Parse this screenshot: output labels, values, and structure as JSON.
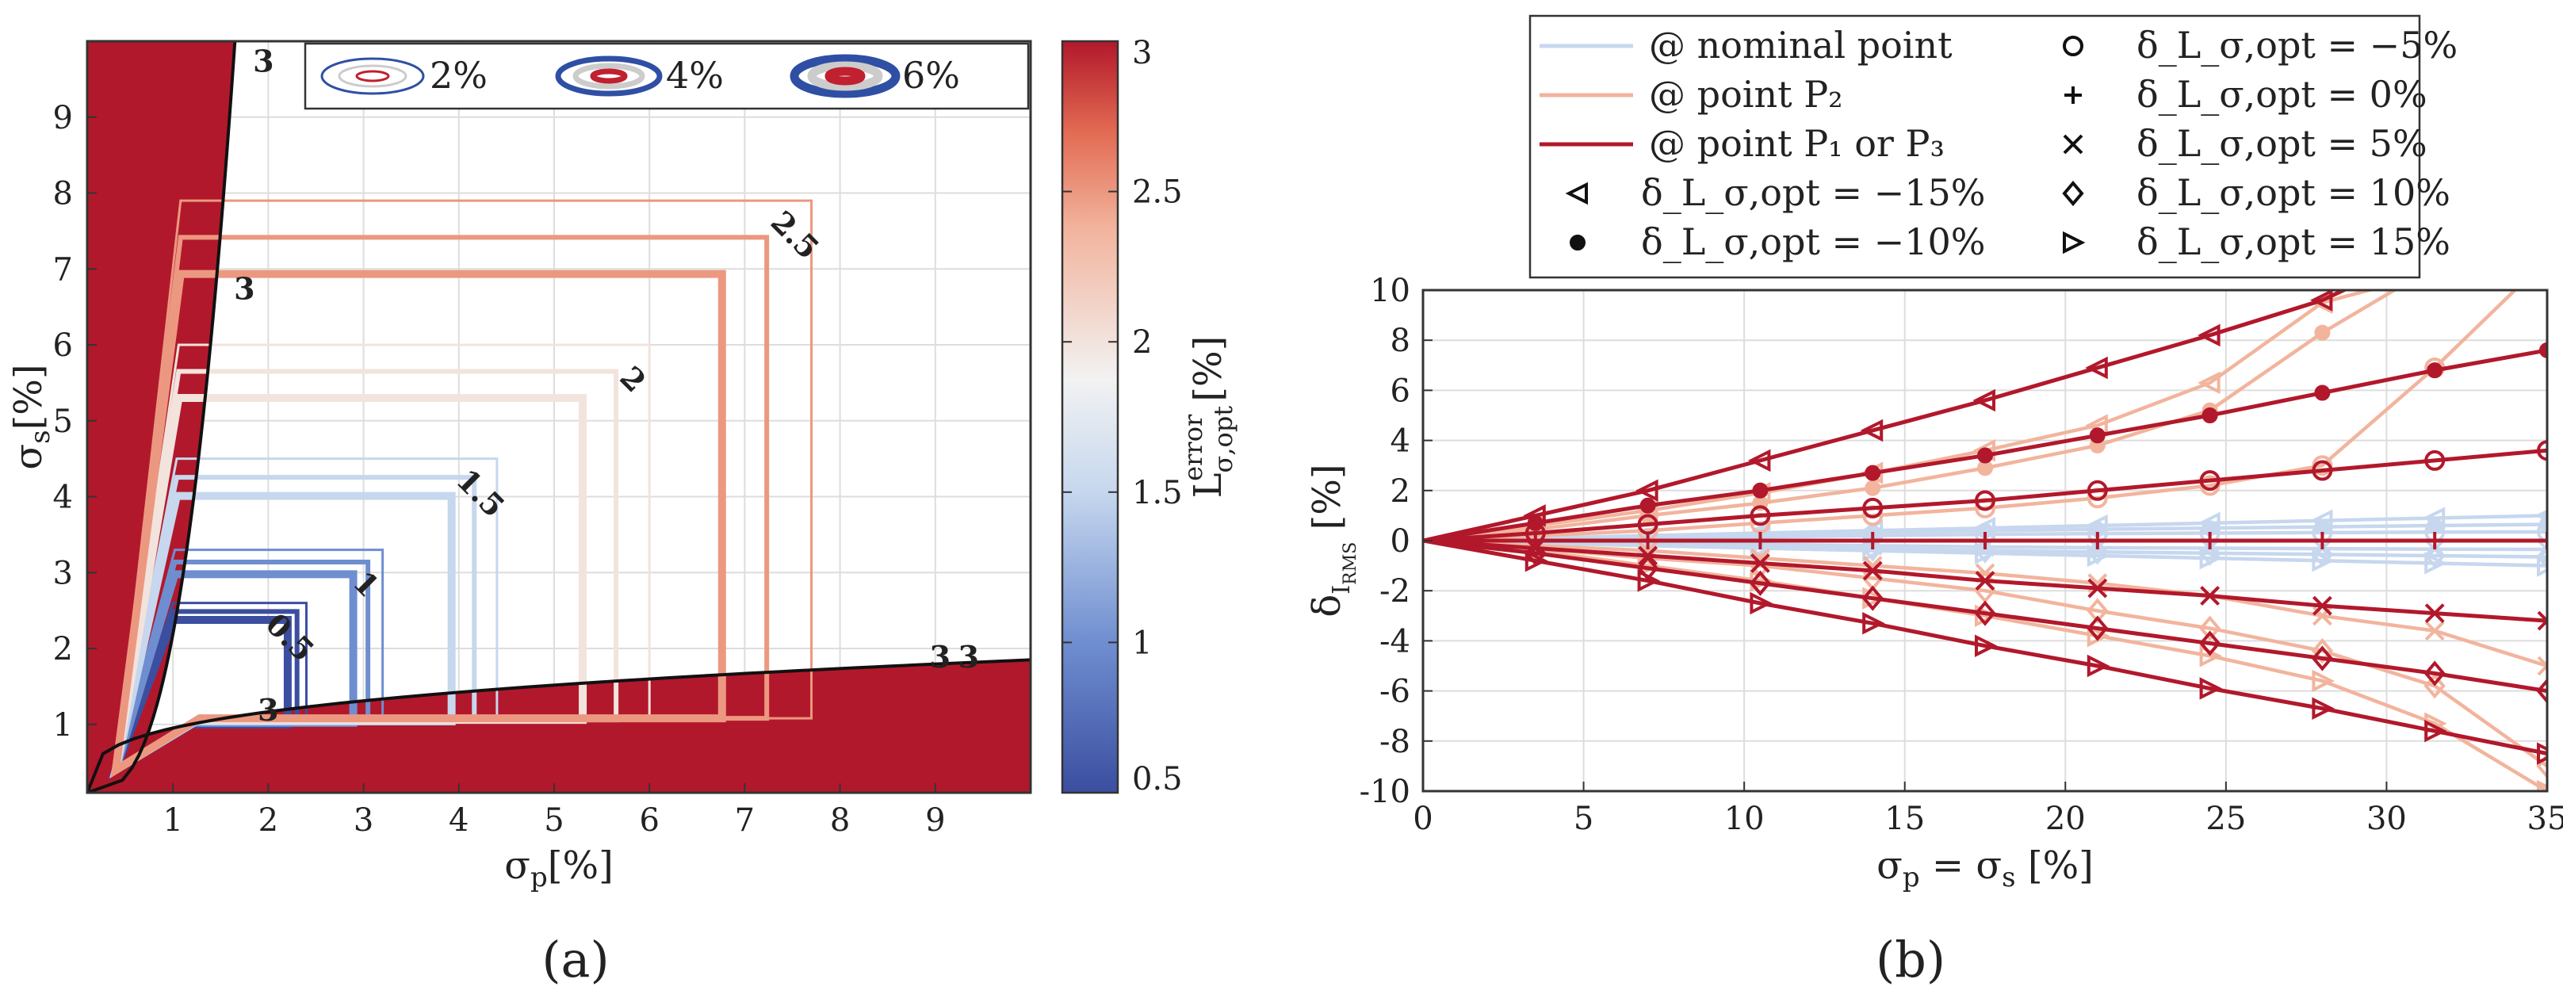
{
  "figure": {
    "panel_a_label": "(a)",
    "panel_b_label": "(b)"
  },
  "chart_data": [
    {
      "type": "heatmap",
      "panel": "a",
      "xlabel": "σ_p[%]",
      "ylabel": "σ_s[%]",
      "xlim": [
        0.1,
        10
      ],
      "ylim": [
        0.1,
        10
      ],
      "xticks": [
        1,
        2,
        3,
        4,
        5,
        6,
        7,
        8,
        9
      ],
      "yticks": [
        1,
        2,
        3,
        4,
        5,
        6,
        7,
        8,
        9
      ],
      "colorbar": {
        "label": "L^error_σ,opt [%]",
        "range": [
          0.5,
          3
        ],
        "ticks": [
          0.5,
          1,
          1.5,
          2,
          2.5,
          3
        ],
        "tick_labels": [
          "0.5",
          "1",
          "1.5",
          "2",
          "2.5",
          "3"
        ],
        "low_color": "#3b4ea0",
        "mid_color": "#f2f2f2",
        "high_color": "#b2182b"
      },
      "contour_levels": [
        {
          "level": 0.5,
          "label": "0.5",
          "x_extent": 2.4,
          "y_extent": 2.6
        },
        {
          "level": 1,
          "label": "1",
          "x_extent": 3.2,
          "y_extent": 3.3
        },
        {
          "level": 1.5,
          "label": "1.5",
          "x_extent": 4.4,
          "y_extent": 4.5
        },
        {
          "level": 2,
          "label": "2",
          "x_extent": 6.0,
          "y_extent": 6.0
        },
        {
          "level": 2.5,
          "label": "2.5",
          "x_extent": 7.7,
          "y_extent": 7.9
        },
        {
          "level": 3,
          "label": "3",
          "x_extent": 9.9,
          "y_extent": 9.9
        }
      ],
      "contour_label_extra": [
        "3",
        "3",
        "3"
      ],
      "legend": [
        {
          "label": "2%",
          "color": "#2f4fa5",
          "width": 3
        },
        {
          "label": "4%",
          "color": "#2f4fa5",
          "width": 7
        },
        {
          "label": "6%",
          "color": "#2f4fa5",
          "width": 11
        }
      ]
    },
    {
      "type": "line",
      "panel": "b",
      "xlabel": "σ_p = σ_s [%]",
      "ylabel": "δ_I_RMS [%]",
      "xlim": [
        0,
        35
      ],
      "ylim": [
        -10,
        10
      ],
      "xticks": [
        0,
        5,
        10,
        15,
        20,
        25,
        30,
        35
      ],
      "yticks": [
        -10,
        -8,
        -6,
        -4,
        -2,
        0,
        2,
        4,
        6,
        8,
        10
      ],
      "x": [
        0,
        3.5,
        7,
        10.5,
        14,
        17.5,
        21,
        24.5,
        28,
        31.5,
        35
      ],
      "legend_lines": [
        {
          "label": "@ nominal point",
          "color": "#c6d7ee"
        },
        {
          "label": "@ point P₂",
          "color": "#f2b49d"
        },
        {
          "label": "@ point P₁ or P₃",
          "color": "#b2182b"
        }
      ],
      "legend_markers": [
        {
          "symbol": "o",
          "label": "δ_L_σ,opt = −5%"
        },
        {
          "symbol": "+",
          "label": "δ_L_σ,opt = 0%"
        },
        {
          "symbol": "x",
          "label": "δ_L_σ,opt = 5%"
        },
        {
          "symbol": "<",
          "label": "δ_L_σ,opt = −15%"
        },
        {
          "symbol": "d",
          "label": "δ_L_σ,opt = 10%"
        },
        {
          "symbol": "*",
          "label": "δ_L_σ,opt = −10%"
        },
        {
          "symbol": ">",
          "label": "δ_L_σ,opt = 15%"
        }
      ],
      "series": [
        {
          "name": "nominal, δ=-15%",
          "group": "nominal",
          "marker": "<",
          "values": [
            0,
            0.1,
            0.2,
            0.3,
            0.4,
            0.5,
            0.6,
            0.7,
            0.8,
            0.9,
            1.0
          ]
        },
        {
          "name": "nominal, δ=-10%",
          "group": "nominal",
          "marker": "*",
          "values": [
            0,
            0.1,
            0.17,
            0.25,
            0.33,
            0.4,
            0.45,
            0.5,
            0.55,
            0.6,
            0.65
          ]
        },
        {
          "name": "nominal, δ=-5%",
          "group": "nominal",
          "marker": "o",
          "values": [
            0,
            0.05,
            0.1,
            0.15,
            0.2,
            0.25,
            0.28,
            0.3,
            0.32,
            0.34,
            0.35
          ]
        },
        {
          "name": "nominal, δ=5%",
          "group": "nominal",
          "marker": "x",
          "values": [
            0,
            -0.05,
            -0.1,
            -0.15,
            -0.2,
            -0.25,
            -0.28,
            -0.3,
            -0.32,
            -0.34,
            -0.35
          ]
        },
        {
          "name": "nominal, δ=10%",
          "group": "nominal",
          "marker": "d",
          "values": [
            0,
            -0.1,
            -0.17,
            -0.25,
            -0.33,
            -0.4,
            -0.45,
            -0.5,
            -0.55,
            -0.6,
            -0.65
          ]
        },
        {
          "name": "nominal, δ=15%",
          "group": "nominal",
          "marker": ">",
          "values": [
            0,
            -0.1,
            -0.2,
            -0.3,
            -0.4,
            -0.5,
            -0.6,
            -0.7,
            -0.8,
            -0.9,
            -1.0
          ]
        },
        {
          "name": "P2, δ=-15%",
          "group": "p2",
          "marker": "<",
          "values": [
            0,
            0.6,
            1.2,
            1.9,
            2.7,
            3.6,
            4.6,
            6.3,
            9.5,
            null,
            null
          ]
        },
        {
          "name": "P2, δ=-10%",
          "group": "p2",
          "marker": "*",
          "values": [
            0,
            0.45,
            1.0,
            1.5,
            2.1,
            2.9,
            3.8,
            5.2,
            8.3,
            null,
            null
          ]
        },
        {
          "name": "P2, δ=-5%",
          "group": "p2",
          "marker": "o",
          "values": [
            0,
            0.2,
            0.4,
            0.7,
            1.0,
            1.3,
            1.7,
            2.2,
            3.0,
            6.9,
            null
          ]
        },
        {
          "name": "P2, δ=5%",
          "group": "p2",
          "marker": "x",
          "values": [
            0,
            -0.2,
            -0.4,
            -0.7,
            -1.0,
            -1.3,
            -1.7,
            -2.2,
            -3.0,
            -3.6,
            -5.0
          ]
        },
        {
          "name": "P2, δ=10%",
          "group": "p2",
          "marker": "d",
          "values": [
            0,
            -0.3,
            -0.7,
            -1.0,
            -1.5,
            -2.0,
            -2.8,
            -3.5,
            -4.4,
            -5.8,
            -9.0
          ]
        },
        {
          "name": "P2, δ=15%",
          "group": "p2",
          "marker": ">",
          "values": [
            0,
            -0.4,
            -1.0,
            -1.6,
            -2.3,
            -3.0,
            -3.8,
            -4.6,
            -5.6,
            -7.3,
            -10.0
          ]
        },
        {
          "name": "P1/P3, δ=-15%",
          "group": "p13",
          "marker": "<",
          "values": [
            0,
            1.0,
            2.0,
            3.2,
            4.4,
            5.6,
            6.9,
            8.2,
            9.6,
            null,
            null
          ]
        },
        {
          "name": "P1/P3, δ=-10%",
          "group": "p13",
          "marker": "*",
          "values": [
            0,
            0.7,
            1.4,
            2.0,
            2.7,
            3.4,
            4.2,
            5.0,
            5.9,
            6.8,
            7.6
          ]
        },
        {
          "name": "P1/P3, δ=-5%",
          "group": "p13",
          "marker": "o",
          "values": [
            0,
            0.3,
            0.65,
            1.0,
            1.3,
            1.6,
            2.0,
            2.4,
            2.8,
            3.2,
            3.6
          ]
        },
        {
          "name": "P1/P3, δ=0%",
          "group": "p13",
          "marker": "+",
          "values": [
            0,
            0,
            0,
            0,
            0,
            0,
            0,
            0,
            0,
            0,
            0
          ]
        },
        {
          "name": "P1/P3, δ=5%",
          "group": "p13",
          "marker": "x",
          "values": [
            0,
            -0.3,
            -0.6,
            -0.9,
            -1.2,
            -1.6,
            -1.9,
            -2.2,
            -2.6,
            -2.9,
            -3.2
          ]
        },
        {
          "name": "P1/P3, δ=10%",
          "group": "p13",
          "marker": "d",
          "values": [
            0,
            -0.5,
            -1.1,
            -1.7,
            -2.3,
            -2.9,
            -3.5,
            -4.1,
            -4.7,
            -5.3,
            -6.0
          ]
        },
        {
          "name": "P1/P3, δ=15%",
          "group": "p13",
          "marker": ">",
          "values": [
            0,
            -0.8,
            -1.6,
            -2.5,
            -3.3,
            -4.2,
            -5.0,
            -5.9,
            -6.7,
            -7.6,
            -8.5
          ]
        }
      ]
    }
  ]
}
